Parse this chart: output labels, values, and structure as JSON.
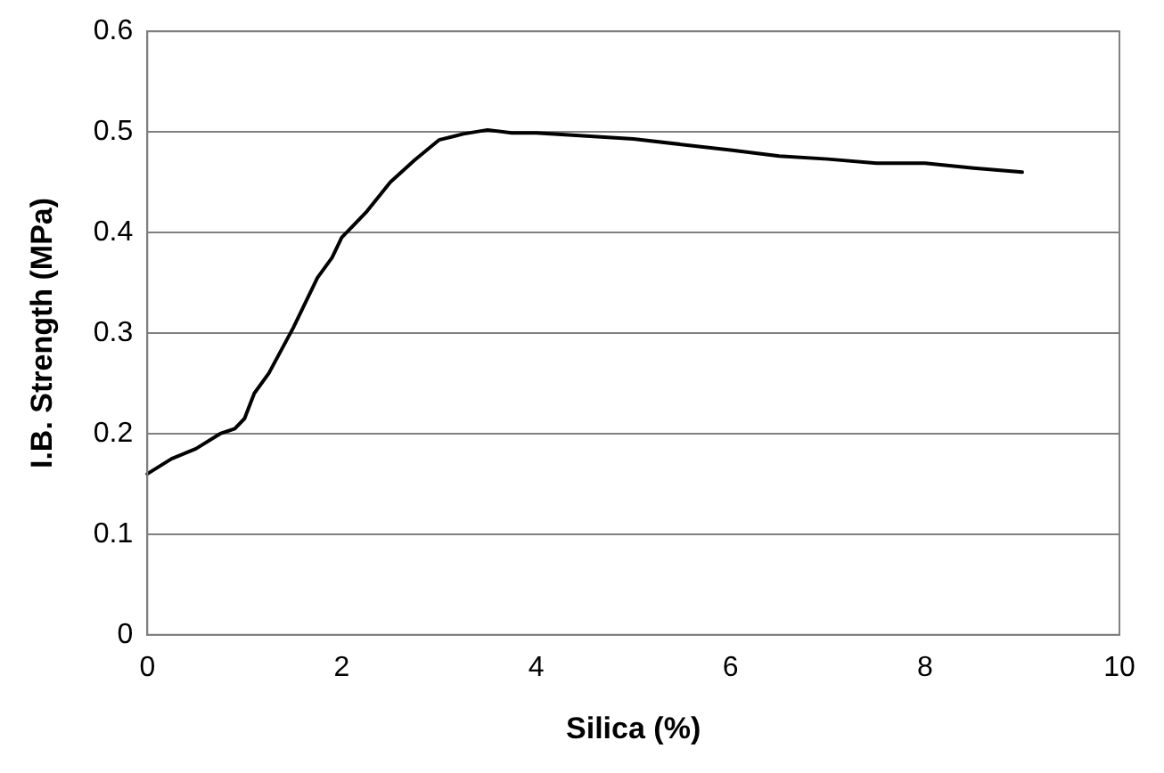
{
  "chart_data": {
    "type": "line",
    "xlabel": "Silica (%)",
    "ylabel": "I.B. Strength (MPa)",
    "x": [
      0,
      0.25,
      0.5,
      0.75,
      0.9,
      1.0,
      1.1,
      1.25,
      1.5,
      1.75,
      1.9,
      2.0,
      2.25,
      2.5,
      2.75,
      3.0,
      3.25,
      3.5,
      3.75,
      4,
      5,
      6,
      6.5,
      7,
      7.5,
      8,
      8.5,
      9
    ],
    "series": [
      {
        "color": "#000000",
        "values": [
          0.16,
          0.175,
          0.185,
          0.2,
          0.205,
          0.215,
          0.24,
          0.26,
          0.305,
          0.355,
          0.375,
          0.395,
          0.42,
          0.45,
          0.472,
          0.492,
          0.498,
          0.502,
          0.499,
          0.499,
          0.493,
          0.482,
          0.476,
          0.473,
          0.469,
          0.469,
          0.464,
          0.46
        ]
      }
    ],
    "xlim": [
      0,
      10
    ],
    "xticks": [
      0,
      2,
      4,
      6,
      8,
      10
    ],
    "ylim": [
      0,
      0.6
    ],
    "yticks": [
      0,
      0.1,
      0.2,
      0.3,
      0.4,
      0.5,
      0.6
    ],
    "grid": "y",
    "legend": false,
    "marker": "none",
    "line_style": "solid"
  }
}
